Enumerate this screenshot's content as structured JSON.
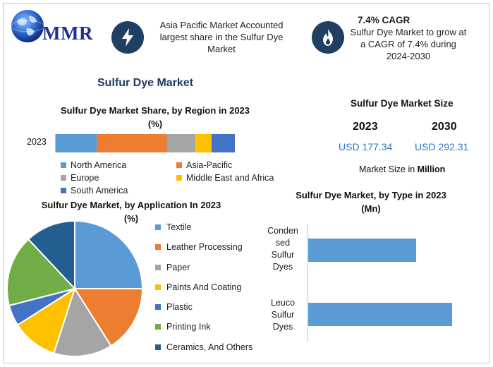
{
  "header": {
    "logo_text": "MMR",
    "highlight1_text": "Asia Pacific Market Accounted largest share in the Sulfur Dye Market",
    "highlight2_title": "7.4% CAGR",
    "highlight2_text": "Sulfur Dye Market to grow at a CAGR of 7.4% during 2024-2030",
    "icon1": "lightning-bolt-icon",
    "icon2": "flame-icon"
  },
  "main_title": "Sulfur Dye Market",
  "market_size": {
    "title": "Sulfur Dye Market Size",
    "year1": "2023",
    "year2": "2030",
    "value1": "USD 177.34",
    "value2": "USD 292.31",
    "note_prefix": "Market Size in ",
    "note_unit": "Million"
  },
  "chart_data": [
    {
      "type": "bar",
      "orientation": "horizontal-stacked",
      "title": "Sulfur Dye Market Share, by Region in 2023",
      "subtitle": "(%)",
      "categories": [
        "2023"
      ],
      "series": [
        {
          "name": "North America",
          "values": [
            23
          ],
          "color": "#5b9bd5"
        },
        {
          "name": "Asia-Pacific",
          "values": [
            39
          ],
          "color": "#ed7d31"
        },
        {
          "name": "Europe",
          "values": [
            16
          ],
          "color": "#a5a5a5"
        },
        {
          "name": "Middle East and Africa",
          "values": [
            9
          ],
          "color": "#ffc000"
        },
        {
          "name": "South America",
          "values": [
            13
          ],
          "color": "#4472c4"
        }
      ]
    },
    {
      "type": "pie",
      "title": "Sulfur Dye Market, by Application In 2023",
      "subtitle": "(%)",
      "categories": [
        "Textile",
        "Leather Processing",
        "Paper",
        "Paints And Coating",
        "Plastic",
        "Printing Ink",
        "Ceramics, And Others"
      ],
      "values": [
        25,
        16,
        14,
        11,
        5,
        17,
        12
      ],
      "colors": [
        "#5b9bd5",
        "#ed7d31",
        "#a5a5a5",
        "#ffc000",
        "#4472c4",
        "#70ad47",
        "#255e91"
      ]
    },
    {
      "type": "bar",
      "orientation": "horizontal",
      "title": "Sulfur Dye Market, by Type in 2023",
      "subtitle": "(Mn)",
      "categories": [
        "Condensed Sulfur Dyes",
        "Leuco Sulfur Dyes"
      ],
      "category_lines": [
        [
          "Conden",
          "sed",
          "Sulfur",
          "Dyes"
        ],
        [
          "Leuco",
          "Sulfur",
          "Dyes"
        ]
      ],
      "values": [
        75,
        100
      ],
      "color": "#5b9bd5"
    }
  ]
}
